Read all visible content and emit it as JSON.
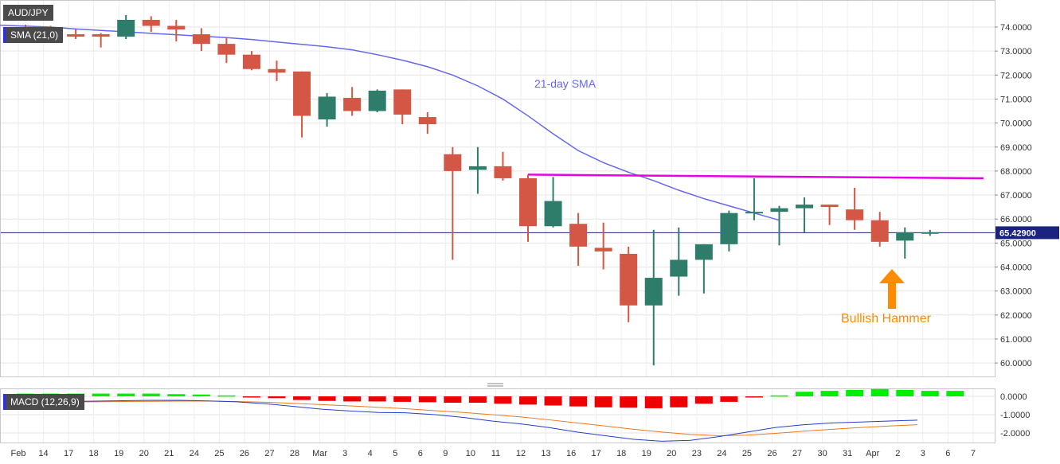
{
  "symbol": "AUD/JPY",
  "main_indicator": "SMA (21,0)",
  "lower_indicator": "MACD (12,26,9)",
  "price_label": "65.42900",
  "sma_annotation": "21-day SMA",
  "hammer_annotation": "Bullish Hammer",
  "colors": {
    "bull": "#2e7d6b",
    "bear": "#d45745",
    "sma": "#6666ee",
    "resistance": "#e600e6",
    "arrow": "#ff8c00",
    "macd_line": "#2440c8",
    "signal_line": "#ee7722",
    "hist_pos": "#00ee00",
    "hist_neg": "#ee0000"
  },
  "chart_data": {
    "type": "candlestick",
    "series_name": "AUD/JPY",
    "y_ticks": [
      "74.0000",
      "73.0000",
      "72.0000",
      "71.0000",
      "70.0000",
      "69.0000",
      "68.0000",
      "67.0000",
      "66.0000",
      "65.0000",
      "64.0000",
      "63.0000",
      "62.0000",
      "61.0000",
      "60.0000"
    ],
    "ylim": [
      59.8,
      74.8
    ],
    "last_price": 65.429,
    "x_labels": [
      "Feb",
      "14",
      "17",
      "18",
      "19",
      "20",
      "21",
      "24",
      "25",
      "26",
      "27",
      "28",
      "Mar",
      "3",
      "4",
      "5",
      "6",
      "9",
      "10",
      "11",
      "12",
      "13",
      "16",
      "17",
      "18",
      "19",
      "20",
      "23",
      "24",
      "25",
      "26",
      "27",
      "30",
      "31",
      "Apr",
      "2",
      "3",
      "6",
      "7"
    ],
    "candles": [
      {
        "date": "Feb 13",
        "o": 74.0,
        "h": 74.1,
        "l": 73.6,
        "c": 73.9
      },
      {
        "date": "Feb 14",
        "o": 73.9,
        "h": 74.05,
        "l": 73.55,
        "c": 73.7
      },
      {
        "date": "Feb 17",
        "o": 73.7,
        "h": 73.9,
        "l": 73.5,
        "c": 73.6
      },
      {
        "date": "Feb 18",
        "o": 73.7,
        "h": 73.75,
        "l": 73.15,
        "c": 73.6
      },
      {
        "date": "Feb 19",
        "o": 73.6,
        "h": 74.5,
        "l": 73.5,
        "c": 74.3
      },
      {
        "date": "Feb 20",
        "o": 74.3,
        "h": 74.45,
        "l": 73.8,
        "c": 74.05
      },
      {
        "date": "Feb 21",
        "o": 74.05,
        "h": 74.3,
        "l": 73.4,
        "c": 73.9
      },
      {
        "date": "Feb 24",
        "o": 73.7,
        "h": 73.95,
        "l": 73.0,
        "c": 73.3
      },
      {
        "date": "Feb 25",
        "o": 73.3,
        "h": 73.55,
        "l": 72.5,
        "c": 72.85
      },
      {
        "date": "Feb 26",
        "o": 72.85,
        "h": 73.0,
        "l": 72.2,
        "c": 72.25
      },
      {
        "date": "Feb 27",
        "o": 72.25,
        "h": 72.6,
        "l": 71.75,
        "c": 72.1
      },
      {
        "date": "Feb 28",
        "o": 72.15,
        "h": 72.15,
        "l": 69.4,
        "c": 70.3
      },
      {
        "date": "Mar 2",
        "o": 70.15,
        "h": 71.25,
        "l": 69.85,
        "c": 71.1
      },
      {
        "date": "Mar 3",
        "o": 71.05,
        "h": 71.5,
        "l": 70.3,
        "c": 70.5
      },
      {
        "date": "Mar 4",
        "o": 70.5,
        "h": 71.4,
        "l": 70.45,
        "c": 71.35
      },
      {
        "date": "Mar 5",
        "o": 71.4,
        "h": 71.4,
        "l": 69.95,
        "c": 70.35
      },
      {
        "date": "Mar 6",
        "o": 70.25,
        "h": 70.45,
        "l": 69.55,
        "c": 69.95
      },
      {
        "date": "Mar 9",
        "o": 68.7,
        "h": 69.0,
        "l": 64.3,
        "c": 68.0
      },
      {
        "date": "Mar 10",
        "o": 68.05,
        "h": 69.0,
        "l": 67.05,
        "c": 68.2
      },
      {
        "date": "Mar 11",
        "o": 68.2,
        "h": 68.8,
        "l": 67.6,
        "c": 67.7
      },
      {
        "date": "Mar 12",
        "o": 67.7,
        "h": 67.85,
        "l": 65.05,
        "c": 65.7
      },
      {
        "date": "Mar 13",
        "o": 65.7,
        "h": 67.75,
        "l": 65.65,
        "c": 66.75
      },
      {
        "date": "Mar 16",
        "o": 65.8,
        "h": 66.25,
        "l": 64.05,
        "c": 64.85
      },
      {
        "date": "Mar 17",
        "o": 64.8,
        "h": 65.85,
        "l": 63.9,
        "c": 64.65
      },
      {
        "date": "Mar 18",
        "o": 64.55,
        "h": 64.85,
        "l": 61.7,
        "c": 62.4
      },
      {
        "date": "Mar 19",
        "o": 62.4,
        "h": 65.55,
        "l": 59.9,
        "c": 63.55
      },
      {
        "date": "Mar 20",
        "o": 63.6,
        "h": 65.65,
        "l": 62.8,
        "c": 64.3
      },
      {
        "date": "Mar 23",
        "o": 64.3,
        "h": 64.95,
        "l": 62.9,
        "c": 64.95
      },
      {
        "date": "Mar 24",
        "o": 64.95,
        "h": 66.35,
        "l": 64.65,
        "c": 66.25
      },
      {
        "date": "Mar 25",
        "o": 66.25,
        "h": 67.7,
        "l": 65.95,
        "c": 66.3
      },
      {
        "date": "Mar 26",
        "o": 66.3,
        "h": 66.55,
        "l": 64.9,
        "c": 66.45
      },
      {
        "date": "Mar 27",
        "o": 66.45,
        "h": 66.9,
        "l": 65.45,
        "c": 66.6
      },
      {
        "date": "Mar 30",
        "o": 66.6,
        "h": 66.6,
        "l": 65.75,
        "c": 66.5
      },
      {
        "date": "Mar 31",
        "o": 66.4,
        "h": 67.3,
        "l": 65.55,
        "c": 65.95
      },
      {
        "date": "Apr 1",
        "o": 65.95,
        "h": 66.3,
        "l": 64.85,
        "c": 65.05
      },
      {
        "date": "Apr 2",
        "o": 65.1,
        "h": 65.65,
        "l": 64.35,
        "c": 65.45
      },
      {
        "date": "Apr 3",
        "o": 65.4,
        "h": 65.55,
        "l": 65.3,
        "c": 65.45
      }
    ],
    "sma": [
      74.0,
      73.92,
      73.86,
      73.8,
      73.74,
      73.68,
      73.62,
      73.56,
      73.48,
      73.38,
      73.28,
      73.18,
      73.05,
      72.85,
      72.62,
      72.35,
      72.0,
      71.55,
      71.0,
      70.3,
      69.55,
      68.85,
      68.35,
      67.95,
      67.6,
      67.2,
      66.85,
      66.55,
      66.25,
      65.95
    ],
    "resistance_line": {
      "start": "Mar 12",
      "end": "Apr 7",
      "y": [
        67.85,
        67.7
      ]
    },
    "macd": {
      "ylim": [
        -2.6,
        0.6
      ],
      "y_ticks": [
        "0.0000",
        "-1.0000",
        "-2.0000"
      ],
      "histogram": [
        0.15,
        0.15,
        0.15,
        0.15,
        0.15,
        0.15,
        0.12,
        0.1,
        0.05,
        -0.05,
        -0.1,
        -0.2,
        -0.25,
        -0.28,
        -0.28,
        -0.3,
        -0.32,
        -0.35,
        -0.35,
        -0.4,
        -0.45,
        -0.5,
        -0.55,
        -0.6,
        -0.62,
        -0.65,
        -0.6,
        -0.4,
        -0.3,
        -0.05,
        0.05,
        0.25,
        0.3,
        0.35,
        0.4,
        0.35,
        0.3,
        0.3
      ],
      "macd_line": [
        -0.3,
        -0.28,
        -0.28,
        -0.26,
        -0.24,
        -0.22,
        -0.22,
        -0.25,
        -0.3,
        -0.4,
        -0.55,
        -0.7,
        -0.8,
        -0.88,
        -0.9,
        -1.0,
        -1.15,
        -1.35,
        -1.5,
        -1.7,
        -1.95,
        -2.15,
        -2.35,
        -2.45,
        -2.4,
        -2.2,
        -1.95,
        -1.7,
        -1.55,
        -1.45,
        -1.4,
        -1.35,
        -1.3
      ],
      "signal_line": [
        -0.3,
        -0.3,
        -0.3,
        -0.3,
        -0.28,
        -0.27,
        -0.26,
        -0.26,
        -0.28,
        -0.32,
        -0.38,
        -0.45,
        -0.52,
        -0.6,
        -0.68,
        -0.78,
        -0.88,
        -1.0,
        -1.12,
        -1.28,
        -1.45,
        -1.62,
        -1.8,
        -1.95,
        -2.08,
        -2.15,
        -2.12,
        -2.02,
        -1.9,
        -1.8,
        -1.7,
        -1.62,
        -1.55
      ]
    }
  }
}
